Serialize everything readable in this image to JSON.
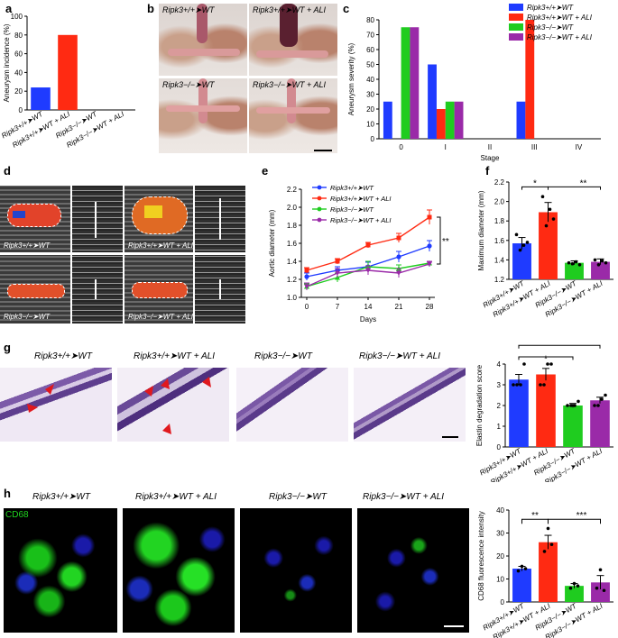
{
  "panels": {
    "a": {
      "label": "a",
      "ylabel": "Aneurysm incidence (%)",
      "yticks": [
        "0",
        "20",
        "40",
        "60",
        "80",
        "100"
      ],
      "categories": [
        "Ripk3+/+➤WT",
        "Ripk3+/+➤WT + ALI",
        "Ripk3−/−➤WT",
        "Ripk3−/−➤WT + ALI"
      ]
    },
    "b": {
      "label": "b",
      "captions": [
        "Ripk3+/+➤WT",
        "Ripk3+/+➤WT + ALI",
        "Ripk3−/−➤WT",
        "Ripk3−/−➤WT + ALI"
      ]
    },
    "c": {
      "label": "c",
      "ylabel": "Aneurysm severity (%)",
      "xlabel": "Stage",
      "yticks": [
        "0",
        "10",
        "20",
        "30",
        "40",
        "50",
        "60",
        "70",
        "80"
      ],
      "stages": [
        "0",
        "I",
        "II",
        "III",
        "IV"
      ],
      "legend": [
        "Ripk3+/+➤WT",
        "Ripk3+/+➤WT + ALI",
        "Ripk3−/−➤WT",
        "Ripk3−/−➤WT + ALI"
      ]
    },
    "d": {
      "label": "d",
      "captions": [
        "Ripk3+/+➤WT",
        "Ripk3+/+➤WT + ALI",
        "Ripk3−/−➤WT",
        "Ripk3−/−➤WT + ALI"
      ]
    },
    "e": {
      "label": "e",
      "ylabel": "Aortic diameter (mm)",
      "xlabel": "Days",
      "xticks": [
        "0",
        "7",
        "14",
        "21",
        "28"
      ],
      "yticks": [
        "1.0",
        "1.2",
        "1.4",
        "1.6",
        "1.8",
        "2.0",
        "2.2"
      ],
      "legend": [
        "Ripk3+/+➤WT",
        "Ripk3+/+➤WT + ALI",
        "Ripk3−/−➤WT",
        "Ripk3−/−➤WT + ALI"
      ],
      "significance": "**"
    },
    "f": {
      "label": "f",
      "ylabel": "Maximum diameter (mm)",
      "yticks": [
        "1.2",
        "1.4",
        "1.6",
        "1.8",
        "2.0",
        "2.2"
      ],
      "sig": [
        "*",
        "**"
      ]
    },
    "g": {
      "label": "g",
      "captions": [
        "Ripk3+/+➤WT",
        "Ripk3+/+➤WT + ALI",
        "Ripk3−/−➤WT",
        "Ripk3−/−➤WT + ALI"
      ],
      "ylabel": "Elastin degradation score",
      "yticks": [
        "0",
        "1",
        "2",
        "3",
        "4"
      ],
      "sig": [
        "*",
        "*"
      ]
    },
    "h": {
      "label": "h",
      "captions": [
        "Ripk3+/+➤WT",
        "Ripk3+/+➤WT + ALI",
        "Ripk3−/−➤WT",
        "Ripk3−/−➤WT + ALI"
      ],
      "stain": "CD68",
      "ylabel": "CD68 fluorescence intensity",
      "yticks": [
        "0",
        "10",
        "20",
        "30",
        "40"
      ],
      "sig": [
        "**",
        "***"
      ]
    }
  },
  "colors": {
    "wt": "#1f3bff",
    "wt_ali": "#ff2a12",
    "ko": "#1fcc1f",
    "ko_ali": "#9a2aa8"
  },
  "chart_data": [
    {
      "id": "a",
      "type": "bar",
      "categories": [
        "Ripk3+/+➤WT",
        "Ripk3+/+➤WT + ALI",
        "Ripk3−/−➤WT",
        "Ripk3−/−➤WT + ALI"
      ],
      "values": [
        24,
        80,
        0,
        0
      ],
      "ylabel": "Aneurysm incidence (%)",
      "ylim": [
        0,
        100
      ]
    },
    {
      "id": "c",
      "type": "bar",
      "categories": [
        "0",
        "I",
        "II",
        "III",
        "IV"
      ],
      "series": [
        {
          "name": "Ripk3+/+➤WT",
          "values": [
            25,
            50,
            0,
            25,
            0
          ]
        },
        {
          "name": "Ripk3+/+➤WT + ALI",
          "values": [
            0,
            20,
            0,
            80,
            0
          ]
        },
        {
          "name": "Ripk3−/−➤WT",
          "values": [
            75,
            25,
            0,
            0,
            0
          ]
        },
        {
          "name": "Ripk3−/−➤WT + ALI",
          "values": [
            75,
            25,
            0,
            0,
            0
          ]
        }
      ],
      "xlabel": "Stage",
      "ylabel": "Aneurysm severity (%)",
      "ylim": [
        0,
        80
      ],
      "legend_position": "top-right"
    },
    {
      "id": "e",
      "type": "line",
      "x": [
        0,
        7,
        14,
        21,
        28
      ],
      "series": [
        {
          "name": "Ripk3+/+➤WT",
          "values": [
            1.23,
            1.3,
            1.34,
            1.45,
            1.57
          ],
          "err": [
            0.04,
            0.04,
            0.05,
            0.06,
            0.06
          ]
        },
        {
          "name": "Ripk3+/+➤WT + ALI",
          "values": [
            1.3,
            1.4,
            1.58,
            1.66,
            1.89
          ],
          "err": [
            0.03,
            0.03,
            0.03,
            0.05,
            0.08
          ]
        },
        {
          "name": "Ripk3−/−➤WT",
          "values": [
            1.12,
            1.22,
            1.34,
            1.32,
            1.38
          ],
          "err": [
            0.03,
            0.05,
            0.06,
            0.04,
            0.02
          ]
        },
        {
          "name": "Ripk3−/−➤WT + ALI",
          "values": [
            1.12,
            1.27,
            1.3,
            1.27,
            1.37
          ],
          "err": [
            0.04,
            0.05,
            0.05,
            0.05,
            0.03
          ]
        }
      ],
      "xlabel": "Days",
      "ylabel": "Aortic diameter (mm)",
      "ylim": [
        1.0,
        2.2
      ],
      "legend_position": "top-left"
    },
    {
      "id": "f",
      "type": "bar",
      "categories": [
        "Ripk3+/+➤WT",
        "Ripk3+/+➤WT + ALI",
        "Ripk3−/−➤WT",
        "Ripk3−/−➤WT + ALI"
      ],
      "values": [
        1.57,
        1.89,
        1.37,
        1.38
      ],
      "err": [
        0.06,
        0.1,
        0.02,
        0.03
      ],
      "points": [
        [
          1.66,
          1.5,
          1.55,
          1.58
        ],
        [
          2.05,
          1.75,
          1.92,
          1.82
        ],
        [
          1.37,
          1.36,
          1.38,
          1.35
        ],
        [
          1.4,
          1.35,
          1.39,
          1.37
        ]
      ],
      "ylabel": "Maximum diameter (mm)",
      "ylim": [
        1.2,
        2.2
      ]
    },
    {
      "id": "g",
      "type": "bar",
      "categories": [
        "Ripk3+/+➤WT",
        "Ripk3+/+➤WT + ALI",
        "Ripk3−/−➤WT",
        "Ripk3−/−➤WT + ALI"
      ],
      "values": [
        3.25,
        3.5,
        2.0,
        2.25
      ],
      "err": [
        0.25,
        0.29,
        0.1,
        0.15
      ],
      "points": [
        [
          3.0,
          3.0,
          3.0,
          4.0
        ],
        [
          3.0,
          3.0,
          4.0,
          4.0
        ],
        [
          2.0,
          2.0,
          2.0,
          2.2
        ],
        [
          2.0,
          2.0,
          2.3,
          2.5
        ]
      ],
      "ylabel": "Elastin degradation score",
      "ylim": [
        0,
        4
      ]
    },
    {
      "id": "h",
      "type": "bar",
      "categories": [
        "Ripk3+/+➤WT",
        "Ripk3+/+➤WT + ALI",
        "Ripk3−/−➤WT",
        "Ripk3−/−➤WT + ALI"
      ],
      "values": [
        14.5,
        26,
        7,
        8.5
      ],
      "err": [
        1,
        3,
        1,
        3
      ],
      "points": [
        [
          13.5,
          15.5,
          14.5
        ],
        [
          22,
          32,
          25
        ],
        [
          6,
          8,
          7
        ],
        [
          6,
          14,
          5
        ]
      ],
      "ylabel": "CD68 fluorescence intensity",
      "ylim": [
        0,
        40
      ]
    }
  ]
}
